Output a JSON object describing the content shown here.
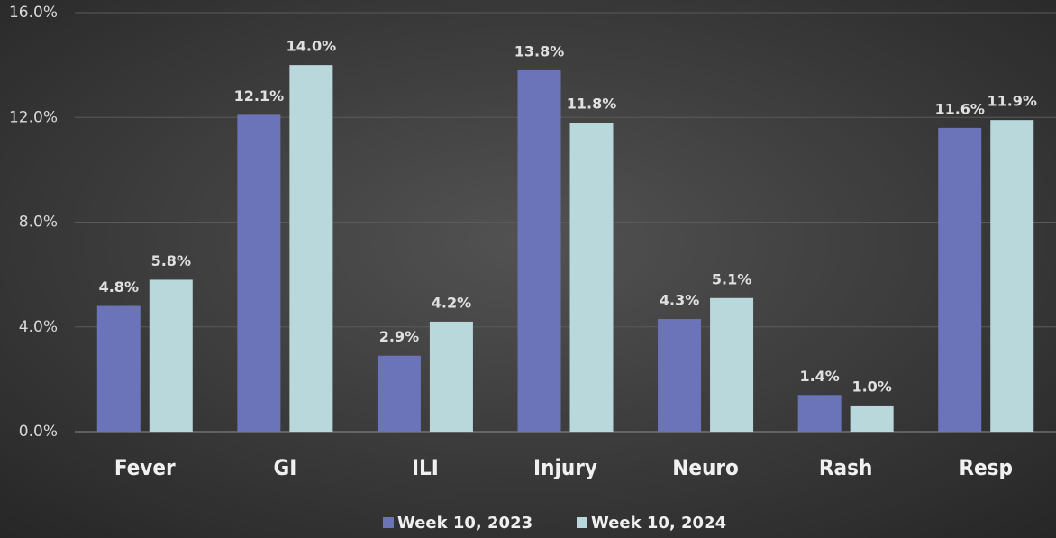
{
  "chart_data": {
    "type": "bar",
    "categories": [
      "Fever",
      "GI",
      "ILI",
      "Injury",
      "Neuro",
      "Rash",
      "Resp"
    ],
    "series": [
      {
        "name": "Week 10, 2023",
        "color": "#6b74b9",
        "values": [
          4.8,
          12.1,
          2.9,
          13.8,
          4.3,
          1.4,
          11.6
        ],
        "value_labels": [
          "4.8%",
          "12.1%",
          "2.9%",
          "13.8%",
          "4.3%",
          "1.4%",
          "11.6%"
        ]
      },
      {
        "name": "Week 10, 2024",
        "color": "#b9d8dc",
        "values": [
          5.8,
          14.0,
          4.2,
          11.8,
          5.1,
          1.0,
          11.9
        ],
        "value_labels": [
          "5.8%",
          "14.0%",
          "4.2%",
          "11.8%",
          "5.1%",
          "1.0%",
          "11.9%"
        ]
      }
    ],
    "ylim": [
      0,
      16
    ],
    "yticks": [
      {
        "value": 0,
        "label": "0.0%"
      },
      {
        "value": 4,
        "label": "4.0%"
      },
      {
        "value": 8,
        "label": "8.0%"
      },
      {
        "value": 12,
        "label": "12.0%"
      },
      {
        "value": 16,
        "label": "16.0%"
      }
    ],
    "grid": true,
    "legend": "bottom"
  }
}
